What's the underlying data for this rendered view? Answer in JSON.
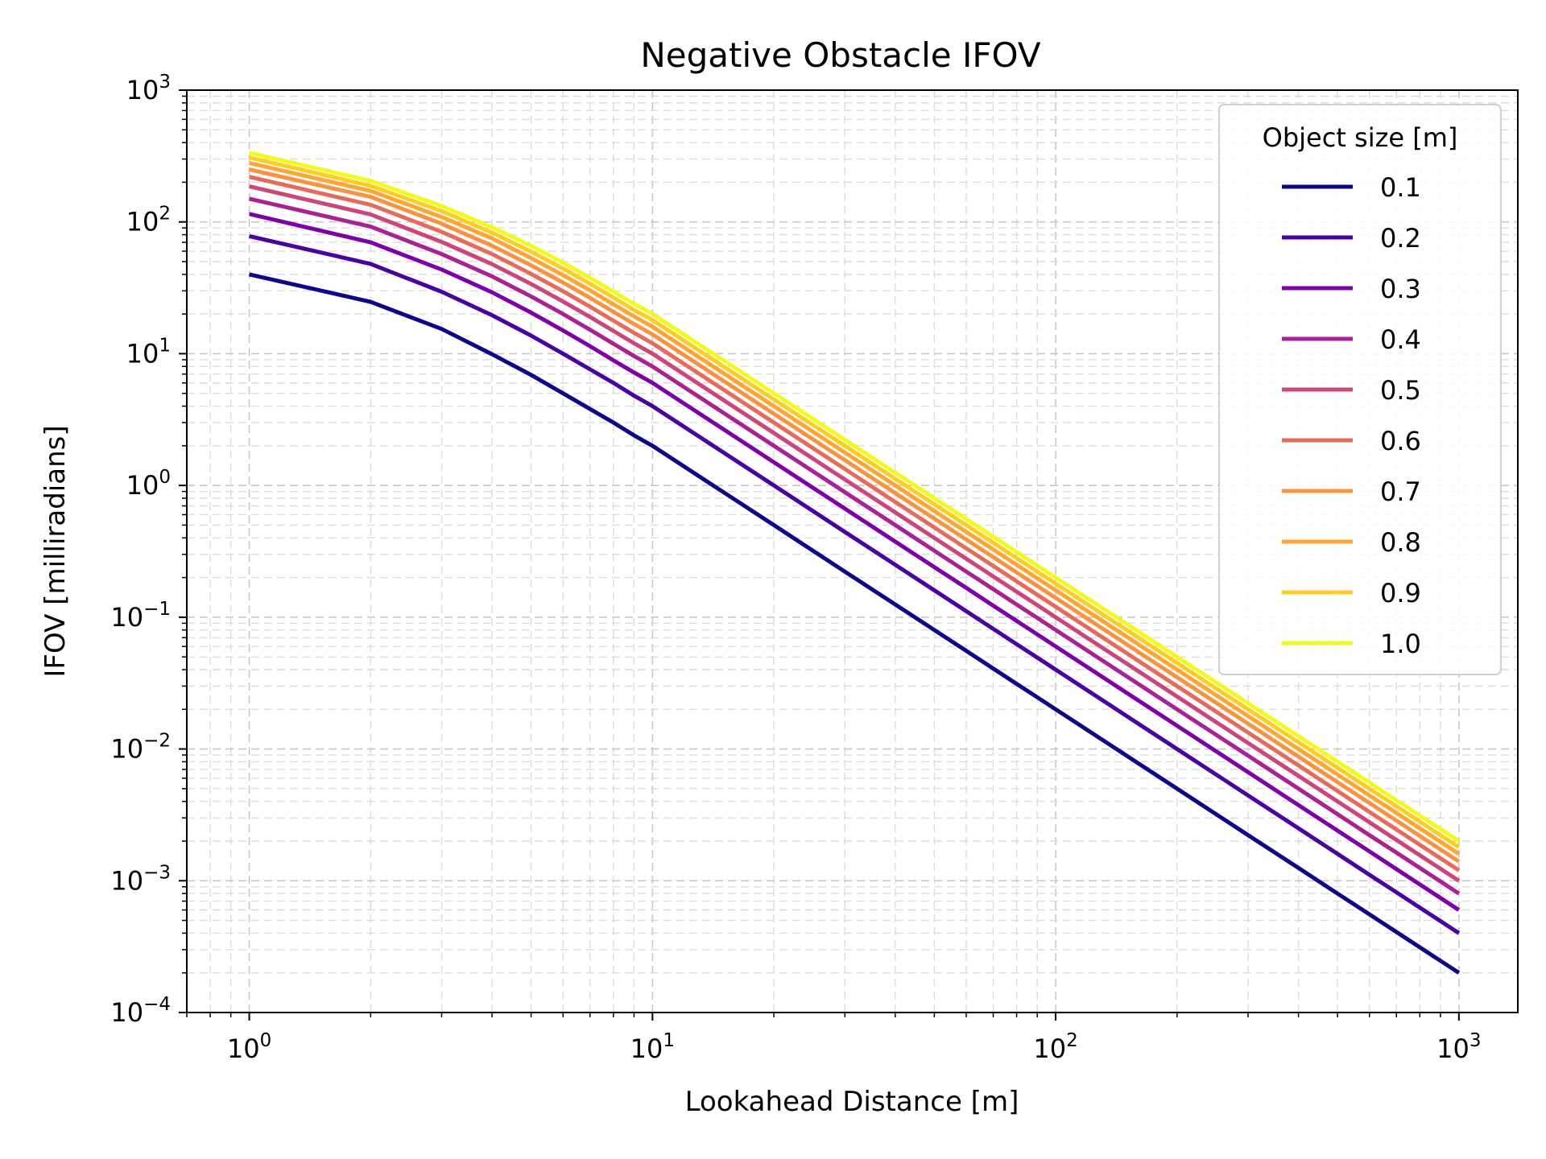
{
  "chart_data": {
    "type": "line",
    "title": "Negative Obstacle IFOV",
    "xlabel": "Lookahead Distance [m]",
    "ylabel": "IFOV [milliradians]",
    "xscale": "log",
    "yscale": "log",
    "xlim": [
      0.7,
      1400
    ],
    "ylim": [
      0.0001,
      1000
    ],
    "x_ticks": [
      {
        "base": "10",
        "exp": "0",
        "value": 1
      },
      {
        "base": "10",
        "exp": "1",
        "value": 10
      },
      {
        "base": "10",
        "exp": "2",
        "value": 100
      },
      {
        "base": "10",
        "exp": "3",
        "value": 1000
      }
    ],
    "y_ticks": [
      {
        "base": "10",
        "exp": "−4",
        "value": 0.0001
      },
      {
        "base": "10",
        "exp": "−3",
        "value": 0.001
      },
      {
        "base": "10",
        "exp": "−2",
        "value": 0.01
      },
      {
        "base": "10",
        "exp": "−1",
        "value": 0.1
      },
      {
        "base": "10",
        "exp": "0",
        "value": 1
      },
      {
        "base": "10",
        "exp": "1",
        "value": 10
      },
      {
        "base": "10",
        "exp": "2",
        "value": 100
      },
      {
        "base": "10",
        "exp": "3",
        "value": 1000
      }
    ],
    "grid": "major and minor, dashed",
    "legend": {
      "title": "Object size [m]",
      "position": "top-right"
    },
    "x": [
      1,
      2,
      3,
      4,
      5,
      6,
      7,
      8,
      9,
      10,
      20,
      30,
      40,
      50,
      60,
      70,
      80,
      90,
      100,
      200,
      300,
      400,
      500,
      600,
      700,
      800,
      900,
      1000
    ],
    "series": [
      {
        "name": "0.1",
        "color": "#0d0887",
        "values": [
          40,
          24.7,
          15.4,
          9.9,
          6.9,
          5.0,
          3.8,
          3.0,
          2.4,
          2.0,
          0.5,
          0.222,
          0.125,
          0.08,
          0.0556,
          0.0408,
          0.03125,
          0.0247,
          0.02,
          0.005,
          0.00222,
          0.00125,
          0.0008,
          0.000556,
          0.000408,
          0.0003125,
          0.000247,
          0.0002
        ]
      },
      {
        "name": "0.2",
        "color": "#4903a0",
        "values": [
          78,
          48,
          29.5,
          19.6,
          13.7,
          10.0,
          7.6,
          6.0,
          4.8,
          4.0,
          1.0,
          0.444,
          0.25,
          0.16,
          0.111,
          0.0816,
          0.0625,
          0.0494,
          0.04,
          0.01,
          0.00444,
          0.0025,
          0.0016,
          0.00111,
          0.000816,
          0.000625,
          0.000494,
          0.0004
        ]
      },
      {
        "name": "0.3",
        "color": "#7c02a7",
        "values": [
          115,
          70,
          43.5,
          29.2,
          20.5,
          15.0,
          11.4,
          8.9,
          7.2,
          6.0,
          1.5,
          0.667,
          0.375,
          0.24,
          0.167,
          0.1224,
          0.09375,
          0.0741,
          0.06,
          0.015,
          0.00667,
          0.00375,
          0.0024,
          0.00167,
          0.001224,
          0.0009375,
          0.000741,
          0.0006
        ]
      },
      {
        "name": "0.4",
        "color": "#a82296",
        "values": [
          150,
          92,
          57,
          38.6,
          27.2,
          20.0,
          15.2,
          11.9,
          9.6,
          8.0,
          2.0,
          0.889,
          0.5,
          0.32,
          0.222,
          0.1633,
          0.125,
          0.0988,
          0.08,
          0.02,
          0.00889,
          0.005,
          0.0032,
          0.00222,
          0.001633,
          0.00125,
          0.000988,
          0.0008
        ]
      },
      {
        "name": "0.5",
        "color": "#cb4679",
        "values": [
          186,
          114,
          70.5,
          47.8,
          33.8,
          24.9,
          19.0,
          14.9,
          12.0,
          10.0,
          2.5,
          1.111,
          0.625,
          0.4,
          0.278,
          0.204,
          0.15625,
          0.1235,
          0.1,
          0.025,
          0.0111,
          0.00625,
          0.004,
          0.00278,
          0.00204,
          0.0015625,
          0.001235,
          0.001
        ]
      },
      {
        "name": "0.6",
        "color": "#e56b5d",
        "values": [
          220,
          135,
          84,
          57,
          40.3,
          29.8,
          22.7,
          17.8,
          14.4,
          12.0,
          3.0,
          1.333,
          0.75,
          0.48,
          0.333,
          0.245,
          0.1875,
          0.148,
          0.12,
          0.03,
          0.01333,
          0.0075,
          0.0048,
          0.00333,
          0.00245,
          0.001875,
          0.00148,
          0.0012
        ]
      },
      {
        "name": "0.7",
        "color": "#f89441",
        "values": [
          250,
          155,
          97,
          66,
          46.8,
          34.7,
          26.5,
          20.8,
          16.8,
          14.0,
          3.5,
          1.556,
          0.875,
          0.56,
          0.389,
          0.286,
          0.21875,
          0.1728,
          0.14,
          0.035,
          0.01556,
          0.00875,
          0.0056,
          0.00389,
          0.00286,
          0.0021875,
          0.001728,
          0.0014
        ]
      },
      {
        "name": "0.8",
        "color": "#fca636",
        "values": [
          280,
          172,
          109,
          75,
          53.2,
          39.5,
          30.2,
          23.7,
          19.2,
          16.0,
          4.0,
          1.778,
          1.0,
          0.64,
          0.444,
          0.327,
          0.25,
          0.1975,
          0.16,
          0.04,
          0.01778,
          0.01,
          0.0064,
          0.00444,
          0.00327,
          0.0025,
          0.001975,
          0.0016
        ]
      },
      {
        "name": "0.9",
        "color": "#fccd25",
        "values": [
          308,
          188,
          121,
          83,
          59.5,
          44.3,
          33.9,
          26.7,
          21.5,
          18.0,
          4.5,
          2.0,
          1.125,
          0.72,
          0.5,
          0.367,
          0.28125,
          0.222,
          0.18,
          0.045,
          0.02,
          0.01125,
          0.0072,
          0.005,
          0.00367,
          0.0028125,
          0.00222,
          0.0018
        ]
      },
      {
        "name": "1.0",
        "color": "#f0f921",
        "values": [
          335,
          205,
          132,
          91,
          65.8,
          49.0,
          37.6,
          29.6,
          23.9,
          20.0,
          5.0,
          2.222,
          1.25,
          0.8,
          0.556,
          0.408,
          0.3125,
          0.247,
          0.2,
          0.05,
          0.02222,
          0.0125,
          0.008,
          0.00556,
          0.00408,
          0.003125,
          0.00247,
          0.002
        ]
      }
    ]
  }
}
